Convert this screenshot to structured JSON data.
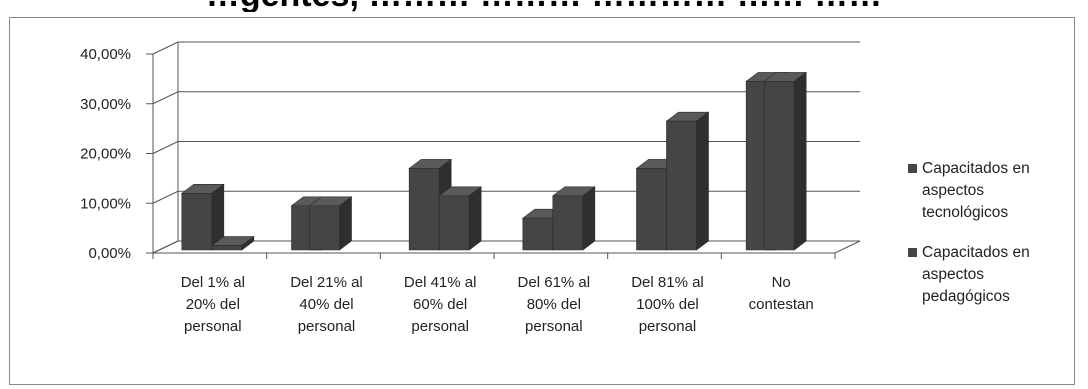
{
  "header": {
    "partial_title": "…gentes, ……… ……… ………… …… ……"
  },
  "chart_data": {
    "type": "bar",
    "subtype": "3d-clustered-column",
    "title": "",
    "xlabel": "",
    "ylabel": "",
    "ylim": [
      0,
      40
    ],
    "yticks": [
      "0,00%",
      "10,00%",
      "20,00%",
      "30,00%",
      "40,00%"
    ],
    "grid": true,
    "legend_position": "right",
    "categories": [
      [
        "Del 1% al",
        "20% del",
        "personal"
      ],
      [
        "Del 21% al",
        "40%  del",
        "personal"
      ],
      [
        "Del 41% al",
        "60%  del",
        "personal"
      ],
      [
        "Del 61% al",
        "80% del",
        "personal"
      ],
      [
        "Del 81% al",
        "100%  del",
        "personal"
      ],
      [
        "No",
        "contestan"
      ]
    ],
    "series": [
      {
        "name": [
          "Capacitados en",
          "aspectos",
          "tecnológicos"
        ],
        "values": [
          12,
          9.5,
          17,
          7,
          17,
          34.5
        ],
        "color": "#454545"
      },
      {
        "name": [
          "Capacitados en",
          "aspectos",
          "pedagógicos"
        ],
        "values": [
          1.5,
          9.5,
          11.5,
          11.5,
          26.5,
          34.5
        ],
        "color": "#454545"
      }
    ]
  }
}
